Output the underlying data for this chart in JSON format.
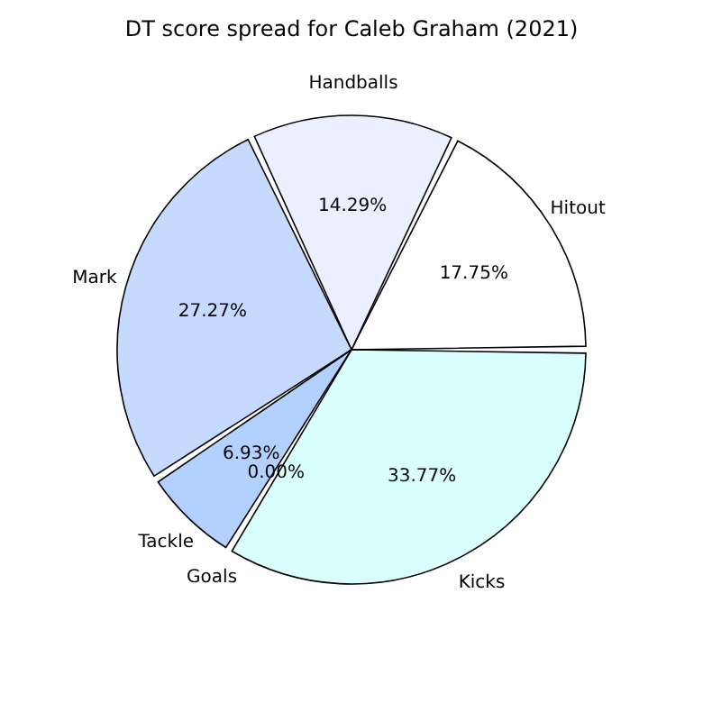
{
  "chart_data": {
    "type": "pie",
    "title": "DT score spread for Caleb Graham (2021)",
    "categories": [
      "Hitout",
      "Handballs",
      "Mark",
      "Tackle",
      "Goals",
      "Kicks"
    ],
    "values": [
      17.75,
      14.29,
      27.27,
      6.93,
      0.0,
      33.77
    ],
    "value_labels": [
      "17.75%",
      "14.29%",
      "27.27%",
      "6.93%",
      "0.00%",
      "33.77%"
    ],
    "colors": [
      "#ffffff",
      "#eaf0ff",
      "#c6d9ff",
      "#b3d1ff",
      "#c0c8ff",
      "#d9ffff"
    ],
    "legend": false
  }
}
